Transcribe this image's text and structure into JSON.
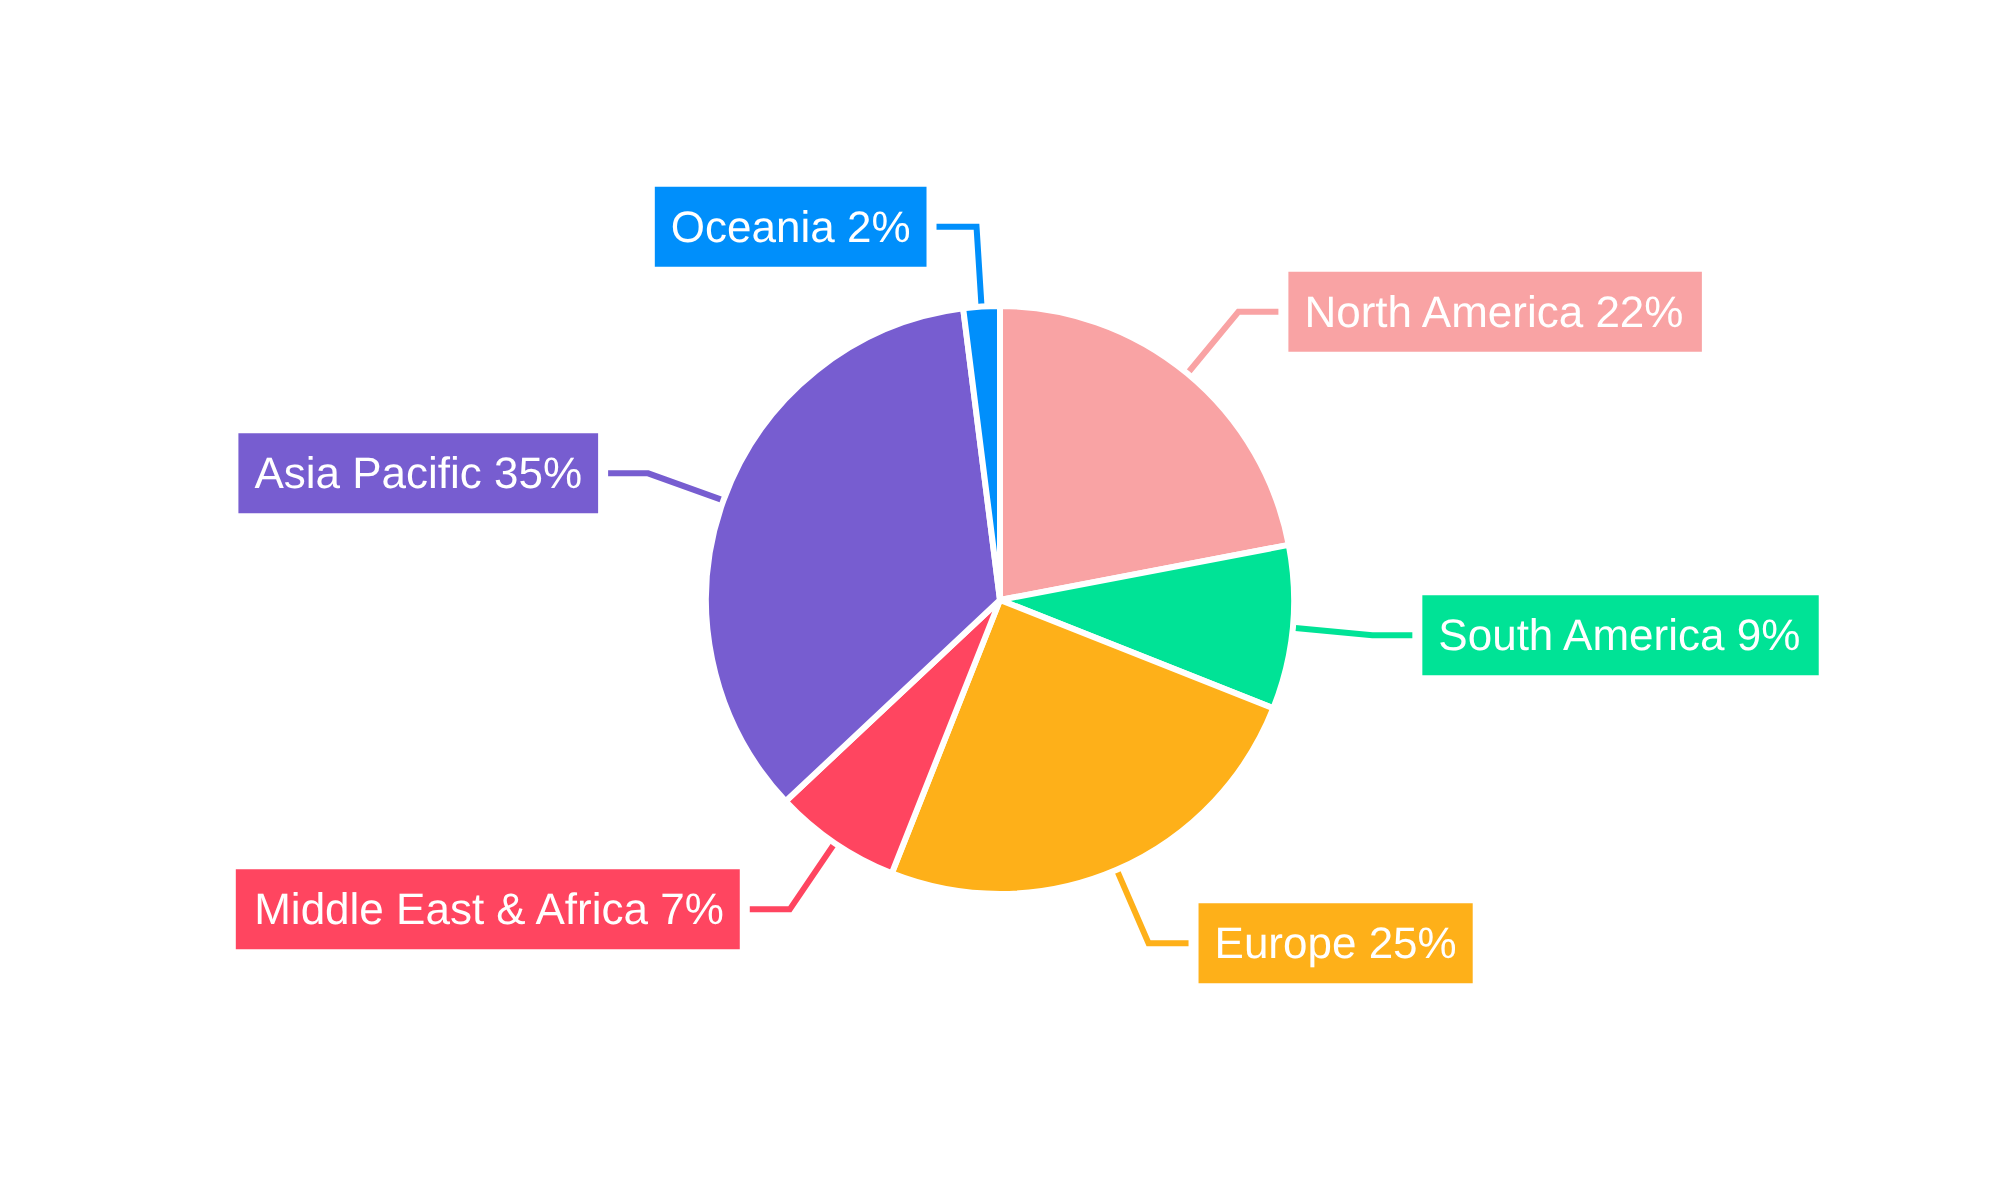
{
  "chart_data": {
    "type": "pie",
    "categories": [
      "North America",
      "South America",
      "Europe",
      "Middle East & Africa",
      "Asia Pacific",
      "Oceania"
    ],
    "values": [
      22,
      9,
      25,
      7,
      35,
      2
    ],
    "value_labels": [
      "22%",
      "9%",
      "25%",
      "7%",
      "35%",
      "2%"
    ],
    "colors": [
      "#f9a3a4",
      "#00e396",
      "#feb019",
      "#ff4560",
      "#775dd0",
      "#008ffb"
    ],
    "legend": false
  }
}
